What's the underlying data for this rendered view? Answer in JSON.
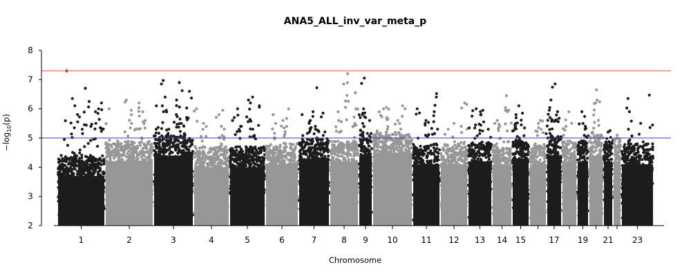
{
  "chart_data": {
    "type": "scatter",
    "title": "ANA5_ALL_inv_var_meta_p",
    "xlabel": "Chromosome",
    "ylabel": {
      "base": "−log",
      "sub": "10",
      "tail": "(p)"
    },
    "ylim": [
      2,
      8
    ],
    "y_ticks": [
      2,
      3,
      4,
      5,
      6,
      7,
      8
    ],
    "grid": false,
    "legend": "none",
    "colors": {
      "odd_chromosome": "#1c1c1c",
      "even_chromosome": "#979797",
      "genome_wide_line": "#f08080",
      "suggestive_line": "#3b3bb0"
    },
    "threshold_lines": [
      {
        "name": "genome-wide",
        "y": 7.3
      },
      {
        "name": "suggestive",
        "y": 5.0
      }
    ],
    "chromosomes": [
      {
        "chr": "1",
        "label": "1",
        "dense_max": 4.2,
        "peaks": [
          7.3,
          6.7,
          6.35,
          6.25,
          6.2,
          6.0,
          5.9,
          5.8,
          5.5,
          5.4,
          5.35,
          5.3
        ]
      },
      {
        "chr": "2",
        "label": "2",
        "dense_max": 4.7,
        "peaks": [
          6.3,
          6.2,
          6.0,
          5.95,
          5.9,
          5.8,
          5.75,
          5.6,
          5.5
        ]
      },
      {
        "chr": "3",
        "label": "3",
        "dense_max": 4.9,
        "peaks": [
          6.97,
          6.9,
          6.85,
          6.6,
          6.4,
          6.3,
          6.1,
          5.9,
          5.8,
          5.7,
          5.65,
          5.5,
          5.3
        ]
      },
      {
        "chr": "4",
        "label": "4",
        "dense_max": 4.5,
        "peaks": [
          6.0,
          5.95,
          5.8,
          5.5,
          5.4,
          5.3
        ]
      },
      {
        "chr": "5",
        "label": "5",
        "dense_max": 4.5,
        "peaks": [
          6.4,
          6.3,
          6.2,
          6.1,
          6.0,
          5.7,
          5.4,
          5.3
        ]
      },
      {
        "chr": "6",
        "label": "6",
        "dense_max": 4.6,
        "peaks": [
          6.0,
          5.8,
          5.6,
          5.5,
          5.4
        ]
      },
      {
        "chr": "7",
        "label": "7",
        "dense_max": 4.8,
        "peaks": [
          6.72,
          5.9,
          5.85,
          5.8,
          5.6,
          5.5,
          5.4
        ]
      },
      {
        "chr": "8",
        "label": "8",
        "dense_max": 4.7,
        "peaks": [
          7.2,
          6.85,
          6.55,
          6.0,
          5.9,
          5.6,
          5.5
        ]
      },
      {
        "chr": "9",
        "label": "9",
        "dense_max": 4.9,
        "peaks": [
          7.05,
          6.0,
          5.85,
          5.8,
          5.7,
          5.6,
          5.5
        ]
      },
      {
        "chr": "10",
        "label": "10",
        "dense_max": 5.0,
        "peaks": [
          6.1,
          6.05,
          6.0,
          5.9,
          5.7,
          5.6
        ]
      },
      {
        "chr": "11",
        "label": "11",
        "dense_max": 4.6,
        "peaks": [
          6.52,
          6.4,
          6.0,
          5.9,
          5.6,
          5.5
        ]
      },
      {
        "chr": "12",
        "label": "12",
        "dense_max": 4.6,
        "peaks": [
          6.2,
          5.5,
          5.4,
          5.3
        ]
      },
      {
        "chr": "13",
        "label": "13",
        "dense_max": 4.7,
        "peaks": [
          6.0,
          5.95,
          5.9,
          5.8,
          5.75,
          5.3
        ]
      },
      {
        "chr": "14",
        "label": "14",
        "dense_max": 4.6,
        "peaks": [
          6.45,
          5.95,
          5.9,
          5.6,
          5.4
        ]
      },
      {
        "chr": "15",
        "label": "15",
        "dense_max": 4.8,
        "peaks": [
          6.1,
          5.85,
          5.8,
          5.5,
          5.4
        ]
      },
      {
        "chr": "16",
        "label": "",
        "dense_max": 4.6,
        "peaks": [
          5.6,
          5.5,
          5.3
        ]
      },
      {
        "chr": "17",
        "label": "17",
        "dense_max": 4.9,
        "peaks": [
          6.85,
          6.3,
          5.95,
          5.9,
          5.7,
          5.6
        ]
      },
      {
        "chr": "18",
        "label": "",
        "dense_max": 4.7,
        "peaks": [
          5.9,
          5.4
        ]
      },
      {
        "chr": "19",
        "label": "19",
        "dense_max": 4.7,
        "peaks": [
          5.9,
          5.4,
          5.3
        ]
      },
      {
        "chr": "20",
        "label": "",
        "dense_max": 4.9,
        "peaks": [
          6.65,
          6.3,
          6.2,
          5.2,
          5.1
        ]
      },
      {
        "chr": "21",
        "label": "21",
        "dense_max": 4.7,
        "peaks": [
          5.25,
          5.2
        ]
      },
      {
        "chr": "22",
        "label": "",
        "dense_max": 4.7,
        "peaks": [
          5.1,
          5.0
        ]
      },
      {
        "chr": "23",
        "label": "23",
        "dense_max": 4.6,
        "peaks": [
          6.47,
          6.35,
          5.9,
          5.5,
          5.3
        ]
      }
    ]
  }
}
